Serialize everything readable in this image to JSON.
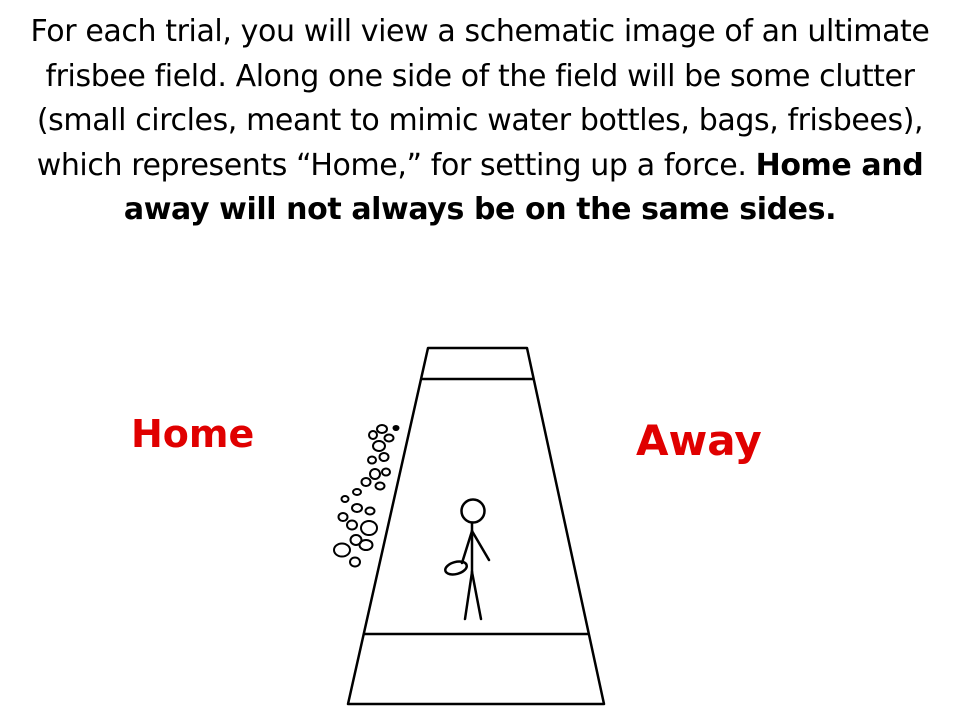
{
  "instructions": {
    "text_regular": "For each trial, you will view a schematic image of an ultimate frisbee field. Along one side of the field will be some clutter (small circles, meant to mimic water bottles, bags, frisbees), which represents “Home,” for setting up a force. ",
    "text_bold": "Home and away will not always be on the same sides."
  },
  "labels": {
    "home": "Home",
    "away": "Away"
  },
  "colors": {
    "label_red": "#e00000",
    "line": "#000000",
    "background": "#ffffff"
  }
}
